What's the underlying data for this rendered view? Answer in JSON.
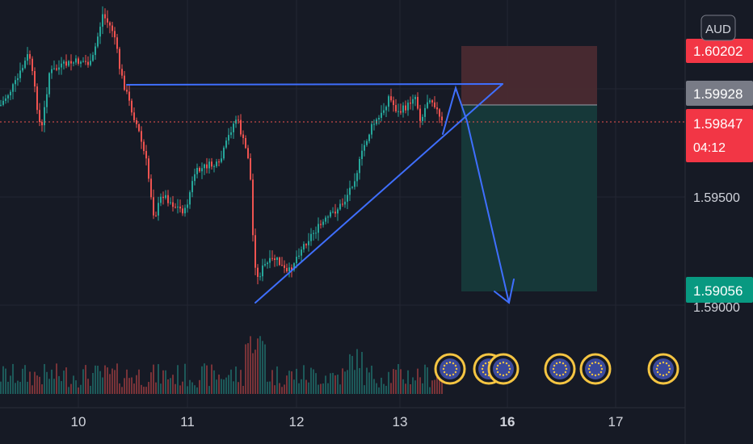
{
  "currency_label": "AUD",
  "colors": {
    "background": "#161a25",
    "grid": "#232632",
    "up": "#26a69a",
    "down": "#ef5350",
    "pattern": "#2962ff",
    "stop_zone": "#4a2a30",
    "target_zone": "#163a3a",
    "event_ring": "#f5c542",
    "event_fill": "#3b4a9c"
  },
  "chart_data": {
    "type": "candlestick",
    "x_ticks": [
      "10",
      "11",
      "12",
      "13",
      "16",
      "17"
    ],
    "y_ticks": [
      "1.59500",
      "1.59000"
    ],
    "y_range": [
      1.5885,
      1.604
    ],
    "price_labels": [
      {
        "value": 1.60202,
        "text": "1.60202",
        "kind": "stop"
      },
      {
        "value": 1.59928,
        "text": "1.59928",
        "kind": "entry"
      },
      {
        "value": 1.59847,
        "text": "1.59847",
        "kind": "last",
        "countdown": "04:12"
      },
      {
        "value": 1.59056,
        "text": "1.59056",
        "kind": "target"
      }
    ],
    "last_price": 1.59847,
    "horizontal_resistance": 1.60005,
    "ascending_support": {
      "from": 1.5902,
      "to": 1.60005
    },
    "projected_move": {
      "from": 1.5999,
      "to": 1.5901
    },
    "event_markers": [
      "EU",
      "EU",
      "EU",
      "EU",
      "EU",
      "EU"
    ]
  }
}
